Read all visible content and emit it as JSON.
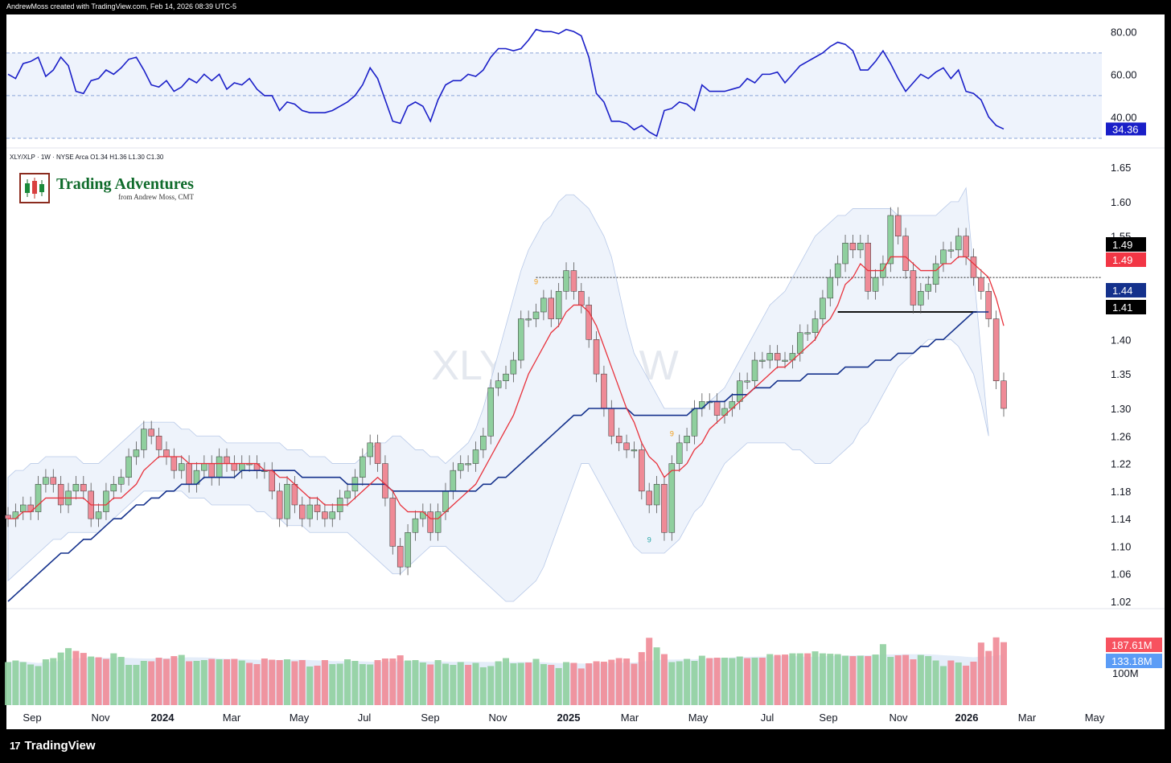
{
  "header": {
    "text": "AndrewMoss created with TradingView.com, Feb 14, 2026 08:39 UTC-5"
  },
  "symbol_line": "XLY/XLP · 1W · NYSE Arca  O1.34  H1.36  L1.30  C1.30",
  "brand": {
    "title": "Trading Adventures",
    "subtitle": "from Andrew Moss, CMT"
  },
  "watermark": {
    "main": "XLY/XLP, 1W",
    "sub": "XLY/XLP"
  },
  "footer": {
    "logo_mark": "17",
    "logo_text": "TradingView"
  },
  "colors": {
    "up": "#8fcf9e",
    "down": "#ef8a96",
    "rsi": "#1a1fc8",
    "ema_fast": "#e8323c",
    "sma_slow": "#14318c",
    "band": "#dfe9f7"
  },
  "chart_data": [
    {
      "type": "line",
      "name": "rsi",
      "ylim": [
        30,
        85
      ],
      "ticks": [
        80,
        60,
        40
      ],
      "tick_labels": [
        "80.00",
        "60.00",
        "40.00"
      ],
      "bands": [
        30,
        50,
        70
      ],
      "last_label": "34.36",
      "values": [
        60,
        58,
        65,
        66,
        68,
        59,
        62,
        68,
        64,
        52,
        51,
        57,
        58,
        62,
        60,
        63,
        67,
        68,
        62,
        55,
        54,
        57,
        52,
        54,
        58,
        56,
        60,
        57,
        60,
        53,
        56,
        55,
        58,
        53,
        50,
        50,
        43,
        47,
        46,
        43,
        42,
        42,
        42,
        43,
        45,
        47,
        50,
        55,
        63,
        58,
        48,
        38,
        37,
        45,
        47,
        45,
        38,
        48,
        55,
        57,
        57,
        60,
        59,
        62,
        68,
        72,
        72,
        71,
        72,
        76,
        81,
        80,
        80,
        79,
        81,
        80,
        78,
        68,
        51,
        47,
        38,
        38,
        37,
        34,
        36,
        33,
        31,
        43,
        44,
        47,
        46,
        43,
        55,
        52,
        52,
        52,
        53,
        54,
        58,
        56,
        60,
        60,
        61,
        56,
        60,
        64,
        66,
        68,
        70,
        73,
        75,
        74,
        71,
        62,
        62,
        66,
        71,
        65,
        58,
        52,
        56,
        60,
        58,
        61,
        63,
        58,
        62,
        52,
        51,
        48,
        40,
        36,
        34.36
      ]
    },
    {
      "type": "candlestick",
      "name": "price",
      "ylim": [
        1.0,
        1.67
      ],
      "ticks": [
        1.65,
        1.6,
        1.55,
        1.5,
        1.45,
        1.4,
        1.35,
        1.3,
        1.26,
        1.22,
        1.18,
        1.14,
        1.1,
        1.06,
        1.02
      ],
      "tick_labels": [
        "1.65",
        "1.60",
        "1.55",
        "",
        "1.45",
        "1.40",
        "1.35",
        "1.30",
        "1.26",
        "1.22",
        "1.18",
        "1.14",
        "1.10",
        "1.06",
        "1.02"
      ],
      "x_labels": [
        "Sep",
        "Nov",
        "2024",
        "Mar",
        "May",
        "Jul",
        "Sep",
        "Nov",
        "2025",
        "Mar",
        "May",
        "Jul",
        "Sep",
        "Nov",
        "2026",
        "Mar",
        "May"
      ],
      "price_labels": [
        {
          "value": 1.49,
          "text": "1.49",
          "bg": "#000000"
        },
        {
          "value": 1.49,
          "text": "1.49",
          "bg": "#f23645"
        },
        {
          "value": 1.44,
          "text": "1.44",
          "bg": "#14318c"
        },
        {
          "value": 1.41,
          "text": "1.41",
          "bg": "#000000"
        }
      ],
      "resistance": 1.49,
      "support": 1.44,
      "td_marks": [
        {
          "index": 85,
          "text": "9",
          "dir": "up"
        },
        {
          "index": 70,
          "text": "9",
          "dir": "down"
        },
        {
          "index": 88,
          "text": "9",
          "dir": "down"
        }
      ],
      "closes": [
        1.14,
        1.15,
        1.16,
        1.15,
        1.19,
        1.2,
        1.19,
        1.16,
        1.18,
        1.19,
        1.18,
        1.14,
        1.15,
        1.18,
        1.19,
        1.2,
        1.23,
        1.24,
        1.27,
        1.26,
        1.24,
        1.23,
        1.21,
        1.22,
        1.19,
        1.21,
        1.22,
        1.2,
        1.23,
        1.22,
        1.21,
        1.22,
        1.22,
        1.21,
        1.21,
        1.18,
        1.14,
        1.19,
        1.16,
        1.14,
        1.16,
        1.15,
        1.14,
        1.15,
        1.17,
        1.18,
        1.2,
        1.23,
        1.25,
        1.22,
        1.17,
        1.1,
        1.07,
        1.12,
        1.14,
        1.15,
        1.12,
        1.15,
        1.18,
        1.21,
        1.22,
        1.22,
        1.24,
        1.26,
        1.33,
        1.34,
        1.35,
        1.37,
        1.43,
        1.43,
        1.44,
        1.46,
        1.43,
        1.47,
        1.5,
        1.47,
        1.45,
        1.4,
        1.35,
        1.3,
        1.26,
        1.25,
        1.24,
        1.24,
        1.18,
        1.16,
        1.19,
        1.12,
        1.22,
        1.25,
        1.26,
        1.3,
        1.31,
        1.31,
        1.29,
        1.3,
        1.31,
        1.34,
        1.34,
        1.37,
        1.37,
        1.38,
        1.37,
        1.37,
        1.38,
        1.41,
        1.41,
        1.43,
        1.46,
        1.49,
        1.51,
        1.54,
        1.53,
        1.54,
        1.47,
        1.49,
        1.51,
        1.58,
        1.55,
        1.5,
        1.45,
        1.47,
        1.48,
        1.51,
        1.53,
        1.53,
        1.55,
        1.52,
        1.49,
        1.47,
        1.43,
        1.34,
        1.3
      ],
      "ma_fast": [
        1.14,
        1.14,
        1.15,
        1.15,
        1.16,
        1.17,
        1.17,
        1.17,
        1.17,
        1.17,
        1.17,
        1.16,
        1.16,
        1.16,
        1.17,
        1.17,
        1.18,
        1.19,
        1.21,
        1.22,
        1.23,
        1.23,
        1.23,
        1.23,
        1.22,
        1.22,
        1.22,
        1.22,
        1.22,
        1.22,
        1.22,
        1.22,
        1.22,
        1.22,
        1.21,
        1.21,
        1.2,
        1.2,
        1.19,
        1.18,
        1.17,
        1.17,
        1.16,
        1.16,
        1.16,
        1.16,
        1.17,
        1.18,
        1.19,
        1.2,
        1.19,
        1.18,
        1.16,
        1.15,
        1.15,
        1.15,
        1.14,
        1.14,
        1.15,
        1.16,
        1.17,
        1.18,
        1.19,
        1.21,
        1.23,
        1.25,
        1.27,
        1.29,
        1.32,
        1.35,
        1.37,
        1.39,
        1.41,
        1.42,
        1.44,
        1.45,
        1.45,
        1.44,
        1.42,
        1.39,
        1.36,
        1.33,
        1.3,
        1.28,
        1.25,
        1.23,
        1.22,
        1.2,
        1.21,
        1.21,
        1.22,
        1.24,
        1.25,
        1.27,
        1.28,
        1.29,
        1.3,
        1.31,
        1.32,
        1.33,
        1.34,
        1.35,
        1.36,
        1.36,
        1.37,
        1.38,
        1.39,
        1.4,
        1.42,
        1.43,
        1.45,
        1.48,
        1.49,
        1.51,
        1.5,
        1.5,
        1.5,
        1.52,
        1.52,
        1.52,
        1.51,
        1.5,
        1.5,
        1.5,
        1.51,
        1.51,
        1.52,
        1.52,
        1.51,
        1.5,
        1.49,
        1.46,
        1.42
      ],
      "ma_slow": [
        1.02,
        1.03,
        1.04,
        1.05,
        1.06,
        1.07,
        1.08,
        1.09,
        1.09,
        1.1,
        1.11,
        1.11,
        1.12,
        1.13,
        1.14,
        1.14,
        1.15,
        1.16,
        1.16,
        1.17,
        1.17,
        1.18,
        1.18,
        1.19,
        1.19,
        1.19,
        1.2,
        1.2,
        1.2,
        1.2,
        1.2,
        1.21,
        1.21,
        1.21,
        1.21,
        1.21,
        1.21,
        1.21,
        1.21,
        1.2,
        1.2,
        1.2,
        1.2,
        1.2,
        1.2,
        1.19,
        1.19,
        1.19,
        1.19,
        1.19,
        1.19,
        1.18,
        1.18,
        1.18,
        1.18,
        1.18,
        1.18,
        1.18,
        1.18,
        1.18,
        1.18,
        1.18,
        1.18,
        1.19,
        1.19,
        1.2,
        1.2,
        1.21,
        1.22,
        1.23,
        1.24,
        1.25,
        1.26,
        1.27,
        1.28,
        1.29,
        1.29,
        1.3,
        1.3,
        1.3,
        1.3,
        1.3,
        1.3,
        1.29,
        1.29,
        1.29,
        1.29,
        1.29,
        1.29,
        1.29,
        1.29,
        1.3,
        1.3,
        1.31,
        1.31,
        1.31,
        1.32,
        1.32,
        1.32,
        1.33,
        1.33,
        1.33,
        1.34,
        1.34,
        1.34,
        1.34,
        1.35,
        1.35,
        1.35,
        1.35,
        1.35,
        1.36,
        1.36,
        1.36,
        1.36,
        1.37,
        1.37,
        1.37,
        1.38,
        1.38,
        1.38,
        1.39,
        1.39,
        1.4,
        1.4,
        1.41,
        1.42,
        1.43,
        1.44,
        1.44,
        1.44
      ],
      "band_upper": [
        1.2,
        1.21,
        1.21,
        1.22,
        1.22,
        1.23,
        1.23,
        1.23,
        1.23,
        1.23,
        1.22,
        1.22,
        1.22,
        1.23,
        1.24,
        1.25,
        1.26,
        1.27,
        1.28,
        1.28,
        1.28,
        1.28,
        1.28,
        1.27,
        1.27,
        1.26,
        1.26,
        1.26,
        1.26,
        1.25,
        1.25,
        1.25,
        1.25,
        1.25,
        1.25,
        1.25,
        1.25,
        1.24,
        1.24,
        1.24,
        1.23,
        1.23,
        1.23,
        1.22,
        1.22,
        1.22,
        1.22,
        1.23,
        1.24,
        1.25,
        1.25,
        1.26,
        1.26,
        1.25,
        1.24,
        1.24,
        1.23,
        1.23,
        1.22,
        1.23,
        1.24,
        1.25,
        1.27,
        1.3,
        1.34,
        1.38,
        1.42,
        1.46,
        1.5,
        1.53,
        1.55,
        1.57,
        1.58,
        1.6,
        1.61,
        1.61,
        1.6,
        1.59,
        1.57,
        1.55,
        1.52,
        1.47,
        1.42,
        1.38,
        1.36,
        1.34,
        1.32,
        1.3,
        1.3,
        1.3,
        1.3,
        1.3,
        1.3,
        1.31,
        1.32,
        1.33,
        1.35,
        1.37,
        1.39,
        1.41,
        1.43,
        1.45,
        1.46,
        1.47,
        1.49,
        1.51,
        1.53,
        1.55,
        1.56,
        1.57,
        1.58,
        1.58,
        1.59,
        1.59,
        1.59,
        1.59,
        1.59,
        1.59,
        1.58,
        1.58,
        1.58,
        1.58,
        1.58,
        1.58,
        1.59,
        1.6,
        1.6,
        1.62
      ],
      "band_lower": [
        1.05,
        1.06,
        1.07,
        1.08,
        1.09,
        1.1,
        1.11,
        1.11,
        1.12,
        1.12,
        1.12,
        1.12,
        1.12,
        1.13,
        1.14,
        1.15,
        1.16,
        1.17,
        1.18,
        1.18,
        1.18,
        1.18,
        1.18,
        1.18,
        1.17,
        1.17,
        1.17,
        1.16,
        1.16,
        1.16,
        1.16,
        1.16,
        1.16,
        1.15,
        1.15,
        1.14,
        1.14,
        1.13,
        1.13,
        1.13,
        1.12,
        1.12,
        1.12,
        1.12,
        1.12,
        1.12,
        1.11,
        1.1,
        1.09,
        1.08,
        1.07,
        1.06,
        1.06,
        1.07,
        1.08,
        1.09,
        1.1,
        1.1,
        1.1,
        1.09,
        1.08,
        1.07,
        1.06,
        1.05,
        1.04,
        1.03,
        1.02,
        1.02,
        1.03,
        1.04,
        1.05,
        1.07,
        1.1,
        1.13,
        1.16,
        1.19,
        1.22,
        1.22,
        1.2,
        1.18,
        1.16,
        1.14,
        1.12,
        1.1,
        1.09,
        1.09,
        1.09,
        1.09,
        1.1,
        1.11,
        1.13,
        1.15,
        1.16,
        1.18,
        1.2,
        1.22,
        1.23,
        1.24,
        1.25,
        1.25,
        1.25,
        1.25,
        1.25,
        1.25,
        1.24,
        1.24,
        1.23,
        1.22,
        1.22,
        1.22,
        1.23,
        1.24,
        1.25,
        1.27,
        1.28,
        1.3,
        1.32,
        1.34,
        1.36,
        1.37,
        1.38,
        1.39,
        1.4,
        1.4,
        1.4,
        1.4,
        1.39,
        1.37,
        1.35,
        1.31,
        1.26
      ]
    },
    {
      "type": "bar",
      "name": "volume",
      "ylim": [
        0,
        220
      ],
      "ticks": [
        100
      ],
      "tick_labels": [
        "100M"
      ],
      "value_labels": [
        {
          "text": "187.61M",
          "bg": "#f7525f"
        },
        {
          "text": "133.18M",
          "bg": "#5b9cf6"
        }
      ],
      "values": [
        108,
        112,
        108,
        102,
        98,
        115,
        118,
        132,
        143,
        136,
        131,
        122,
        120,
        116,
        130,
        121,
        101,
        101,
        111,
        110,
        119,
        116,
        123,
        126,
        110,
        111,
        113,
        116,
        115,
        115,
        116,
        112,
        106,
        103,
        117,
        114,
        113,
        115,
        110,
        113,
        97,
        99,
        113,
        103,
        104,
        115,
        111,
        103,
        102,
        113,
        117,
        117,
        125,
        112,
        113,
        107,
        102,
        113,
        104,
        101,
        108,
        101,
        106,
        95,
        98,
        110,
        118,
        105,
        106,
        107,
        116,
        103,
        101,
        93,
        108,
        106,
        92,
        105,
        110,
        109,
        114,
        118,
        117,
        104,
        133,
        169,
        145,
        128,
        108,
        110,
        116,
        111,
        124,
        118,
        119,
        119,
        118,
        122,
        118,
        119,
        119,
        128,
        126,
        127,
        130,
        130,
        130,
        135,
        130,
        129,
        128,
        124,
        123,
        124,
        123,
        127,
        153,
        121,
        125,
        126,
        115,
        126,
        123,
        112,
        98,
        112,
        107,
        99,
        109,
        157,
        136,
        170,
        158
      ],
      "direction": [
        1,
        1,
        1,
        1,
        1,
        1,
        1,
        1,
        1,
        0,
        0,
        1,
        0,
        0,
        1,
        1,
        1,
        1,
        1,
        0,
        0,
        0,
        0,
        1,
        0,
        1,
        1,
        0,
        1,
        0,
        0,
        1,
        0,
        0,
        0,
        0,
        0,
        1,
        0,
        0,
        1,
        0,
        0,
        1,
        1,
        1,
        1,
        1,
        1,
        0,
        0,
        0,
        0,
        1,
        1,
        1,
        0,
        1,
        1,
        1,
        1,
        0,
        1,
        1,
        1,
        1,
        1,
        1,
        1,
        0,
        1,
        1,
        0,
        1,
        1,
        0,
        0,
        0,
        0,
        0,
        0,
        0,
        0,
        0,
        0,
        0,
        1,
        0,
        1,
        1,
        1,
        1,
        1,
        0,
        0,
        1,
        1,
        1,
        0,
        1,
        0,
        1,
        0,
        0,
        1,
        1,
        0,
        1,
        1,
        1,
        1,
        1,
        0,
        1,
        0,
        1,
        1,
        1,
        0,
        0,
        0,
        1,
        1,
        1,
        1,
        0,
        1,
        0,
        0,
        0,
        0,
        0,
        0
      ]
    }
  ]
}
